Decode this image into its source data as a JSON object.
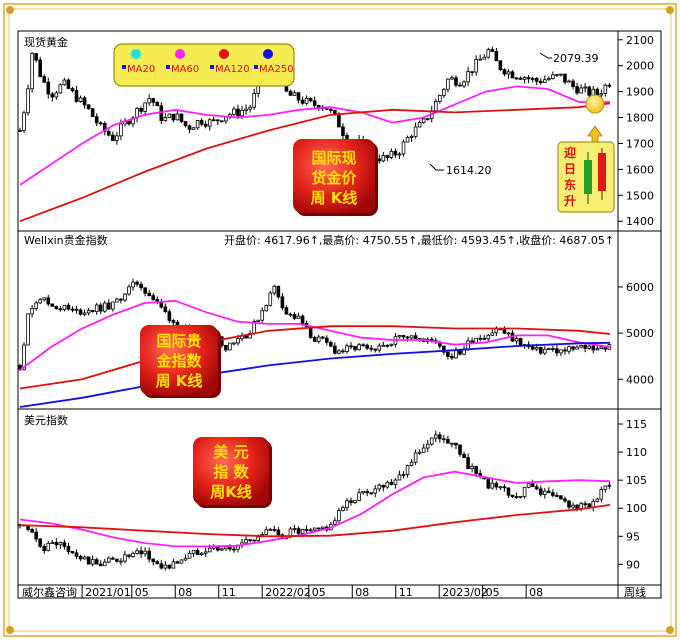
{
  "chart_data": [
    {
      "type": "candlestick",
      "title": "现货黄金",
      "yticks": [
        1400,
        1500,
        1600,
        1700,
        1800,
        1900,
        2000,
        2100
      ],
      "ylim": [
        1370,
        2130
      ],
      "legend": [
        {
          "label": "MA20",
          "color": "#18e0e0"
        },
        {
          "label": "MA60",
          "color": "#ff20ff"
        },
        {
          "label": "MA120",
          "color": "#e01010"
        },
        {
          "label": "MA250",
          "color": "#1010e0"
        }
      ],
      "annotations": {
        "high": "2079.39",
        "low": "1614.20"
      },
      "badge": [
        "国际现",
        "货金价",
        "周  K线"
      ],
      "side_badge": [
        "迎",
        "日",
        "东",
        "升"
      ],
      "series": [
        {
          "name": "price",
          "color": "#000000",
          "x": [
            0,
            2,
            4,
            7,
            10,
            14,
            18,
            22,
            26,
            30,
            34,
            38,
            42,
            46,
            50,
            54,
            58,
            62,
            66,
            70,
            74,
            78,
            82,
            86,
            90,
            94,
            98,
            102,
            106,
            110,
            114,
            118,
            122,
            126,
            130,
            134,
            138,
            142,
            145,
            148,
            151,
            154,
            158,
            162,
            166,
            170,
            174,
            178,
            182,
            186,
            190
          ],
          "values": [
            1750,
            1870,
            2060,
            1950,
            1890,
            1930,
            1880,
            1830,
            1760,
            1720,
            1780,
            1830,
            1880,
            1790,
            1810,
            1760,
            1790,
            1780,
            1810,
            1820,
            1840,
            1960,
            1990,
            1890,
            1870,
            1850,
            1850,
            1790,
            1700,
            1700,
            1650,
            1640,
            1670,
            1740,
            1780,
            1860,
            1950,
            1940,
            1980,
            2020,
            2060,
            2000,
            1970,
            1960,
            1940,
            1950,
            1960,
            1920,
            1900,
            1890,
            1940
          ]
        },
        {
          "name": "MA60",
          "color": "#ff20ff",
          "x": [
            0,
            10,
            20,
            30,
            40,
            50,
            60,
            70,
            80,
            90,
            100,
            110,
            120,
            130,
            140,
            150,
            160,
            170,
            180,
            190
          ],
          "values": [
            1540,
            1620,
            1700,
            1770,
            1810,
            1830,
            1810,
            1800,
            1810,
            1830,
            1840,
            1820,
            1780,
            1800,
            1850,
            1900,
            1920,
            1910,
            1860,
            1860
          ]
        },
        {
          "name": "MA120",
          "color": "#e01010",
          "x": [
            0,
            20,
            40,
            60,
            80,
            100,
            120,
            140,
            160,
            180,
            190
          ],
          "values": [
            1400,
            1490,
            1590,
            1680,
            1750,
            1810,
            1830,
            1820,
            1830,
            1840,
            1855
          ]
        }
      ]
    },
    {
      "type": "candlestick",
      "title": "Wellxin贵金指数",
      "ohlc_line": "开盘价: 4617.96↑,最高价: 4750.55↑,最低价: 4593.45↑,收盘价: 4687.05↑",
      "yticks": [
        4000,
        5000,
        6000
      ],
      "ylim": [
        3400,
        6800
      ],
      "badge": [
        "国际贵",
        "金指数",
        "周  K线"
      ],
      "series": [
        {
          "name": "price",
          "color": "#000000",
          "x": [
            0,
            3,
            6,
            10,
            14,
            18,
            22,
            26,
            30,
            34,
            38,
            42,
            46,
            50,
            54,
            58,
            62,
            66,
            70,
            74,
            78,
            82,
            86,
            90,
            94,
            98,
            102,
            106,
            110,
            114,
            118,
            122,
            126,
            130,
            134,
            138,
            142,
            146,
            150,
            154,
            158,
            162,
            166,
            170,
            174,
            178,
            182,
            186,
            190
          ],
          "values": [
            4300,
            5500,
            5800,
            5600,
            5550,
            5450,
            5500,
            5550,
            5600,
            5900,
            6100,
            5800,
            5500,
            5200,
            5000,
            5050,
            5000,
            4700,
            4900,
            5000,
            5500,
            6000,
            5400,
            5300,
            4900,
            4800,
            4600,
            4650,
            4700,
            4550,
            4800,
            4900,
            5000,
            4800,
            4850,
            4500,
            4600,
            4900,
            4950,
            5100,
            4900,
            4750,
            4600,
            4650,
            4600,
            4650,
            4700,
            4687,
            4690
          ]
        },
        {
          "name": "MA60",
          "color": "#ff20ff",
          "x": [
            0,
            10,
            20,
            30,
            40,
            50,
            60,
            70,
            80,
            90,
            100,
            110,
            120,
            130,
            140,
            150,
            160,
            170,
            180,
            190
          ],
          "values": [
            4200,
            4700,
            5100,
            5400,
            5650,
            5700,
            5450,
            5250,
            5200,
            5200,
            5050,
            4900,
            4850,
            4850,
            4750,
            4800,
            4950,
            4950,
            4800,
            4700
          ]
        },
        {
          "name": "MA120",
          "color": "#e01010",
          "x": [
            0,
            20,
            40,
            60,
            80,
            100,
            120,
            140,
            160,
            180,
            190
          ],
          "values": [
            3800,
            4000,
            4400,
            4800,
            5050,
            5150,
            5150,
            5100,
            5100,
            5050,
            4980
          ]
        },
        {
          "name": "MA250",
          "color": "#1010e0",
          "x": [
            0,
            20,
            40,
            60,
            80,
            100,
            120,
            140,
            160,
            180,
            190
          ],
          "values": [
            3400,
            3600,
            3850,
            4100,
            4300,
            4450,
            4550,
            4630,
            4720,
            4780,
            4790
          ]
        }
      ]
    },
    {
      "type": "candlestick",
      "title": "美元指数",
      "yticks": [
        90,
        95,
        100,
        105,
        110,
        115
      ],
      "ylim": [
        86.5,
        117.5
      ],
      "badge": [
        "美  元",
        "指  数",
        "周K线"
      ],
      "series": [
        {
          "name": "price",
          "color": "#000000",
          "x": [
            0,
            4,
            8,
            12,
            16,
            20,
            24,
            28,
            32,
            36,
            40,
            44,
            48,
            52,
            56,
            60,
            64,
            68,
            72,
            76,
            80,
            84,
            88,
            92,
            96,
            100,
            104,
            108,
            112,
            116,
            120,
            124,
            128,
            132,
            136,
            140,
            144,
            148,
            152,
            156,
            160,
            164,
            168,
            172,
            176,
            180,
            184,
            188,
            190
          ],
          "values": [
            97,
            95,
            93,
            94,
            92,
            91,
            90,
            90.5,
            91,
            91.5,
            92,
            90,
            89.5,
            91,
            92,
            93,
            93,
            92.5,
            94,
            95,
            96,
            95,
            96,
            95.5,
            96,
            97,
            100,
            102,
            103,
            104,
            105,
            107,
            110,
            112,
            113,
            111,
            108,
            105,
            104,
            103,
            102,
            104,
            103,
            102,
            101,
            100,
            101,
            103,
            104
          ]
        },
        {
          "name": "MA60",
          "color": "#ff20ff",
          "x": [
            0,
            10,
            20,
            30,
            40,
            50,
            60,
            70,
            80,
            90,
            100,
            110,
            120,
            130,
            140,
            150,
            160,
            170,
            180,
            190
          ],
          "values": [
            98,
            97.3,
            96.2,
            94.8,
            93.8,
            93.2,
            93.2,
            93.3,
            94.2,
            95.2,
            96.5,
            99,
            102.5,
            105.5,
            106.5,
            105.5,
            104.5,
            104.8,
            105,
            104.8
          ]
        },
        {
          "name": "MA120",
          "color": "#e01010",
          "x": [
            0,
            20,
            40,
            60,
            80,
            100,
            120,
            140,
            160,
            180,
            190
          ],
          "values": [
            97,
            96.6,
            96,
            95.4,
            95,
            95.1,
            96,
            97.5,
            98.8,
            99.8,
            100.6
          ]
        }
      ]
    }
  ],
  "xaxis": {
    "ticks": [
      {
        "label": "2021/01",
        "x": 20
      },
      {
        "label": "05",
        "x": 36
      },
      {
        "label": "08",
        "x": 50
      },
      {
        "label": "11",
        "x": 64
      },
      {
        "label": "2022/02",
        "x": 78
      },
      {
        "label": "05",
        "x": 93
      },
      {
        "label": "08",
        "x": 107
      },
      {
        "label": "11",
        "x": 121
      },
      {
        "label": "2023/02",
        "x": 135
      },
      {
        "label": "05",
        "x": 149
      },
      {
        "label": "08",
        "x": 163
      }
    ],
    "xlim": [
      0,
      190
    ]
  },
  "footer": {
    "left": "威尔鑫咨询",
    "right": "周线"
  }
}
